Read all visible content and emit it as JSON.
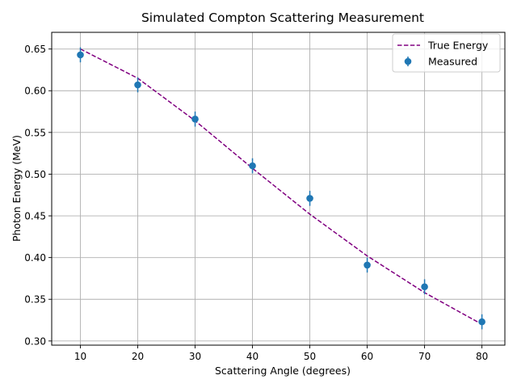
{
  "chart_data": {
    "type": "scatter",
    "title": "Simulated Compton Scattering Measurement",
    "xlabel": "Scattering Angle (degrees)",
    "ylabel": "Photon Energy (MeV)",
    "xlim": [
      5,
      84
    ],
    "ylim": [
      0.295,
      0.67
    ],
    "xticks": [
      10,
      20,
      30,
      40,
      50,
      60,
      70,
      80
    ],
    "xtick_labels": [
      "10",
      "20",
      "30",
      "40",
      "50",
      "60",
      "70",
      "80"
    ],
    "yticks": [
      0.3,
      0.35,
      0.4,
      0.45,
      0.5,
      0.55,
      0.6,
      0.65
    ],
    "ytick_labels": [
      "0.30",
      "0.35",
      "0.40",
      "0.45",
      "0.50",
      "0.55",
      "0.60",
      "0.65"
    ],
    "grid": true,
    "legend_position": "top-right",
    "series": [
      {
        "name": "True Energy",
        "kind": "line",
        "style": "dashed",
        "color": "#800080",
        "x": [
          10,
          20,
          30,
          40,
          50,
          60,
          70,
          80
        ],
        "y": [
          0.65,
          0.615,
          0.564,
          0.507,
          0.452,
          0.402,
          0.358,
          0.32
        ]
      },
      {
        "name": "Measured",
        "kind": "errorbar",
        "color": "#1f77b4",
        "x": [
          10,
          20,
          30,
          40,
          50,
          60,
          70,
          80
        ],
        "y": [
          0.643,
          0.607,
          0.566,
          0.51,
          0.471,
          0.391,
          0.365,
          0.323
        ],
        "yerr": [
          0.009,
          0.009,
          0.009,
          0.009,
          0.009,
          0.009,
          0.009,
          0.009
        ]
      }
    ]
  }
}
